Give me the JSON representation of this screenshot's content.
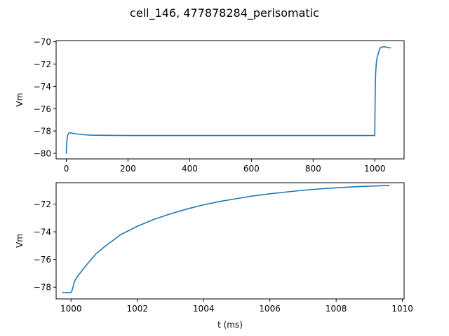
{
  "figure": {
    "suptitle": "cell_146, 477878284_perisomatic"
  },
  "chart_data": [
    {
      "type": "line",
      "title": "",
      "xlabel": "",
      "ylabel": "Vm",
      "xlim": [
        -33,
        1095
      ],
      "ylim": [
        -80.5,
        -69.9
      ],
      "xticks": [
        0,
        200,
        400,
        600,
        800,
        1000
      ],
      "yticks": [
        -80,
        -78,
        -76,
        -74,
        -72,
        -70
      ],
      "xtick_labels": [
        "0",
        "200",
        "400",
        "600",
        "800",
        "1000"
      ],
      "ytick_labels": [
        "−80",
        "−78",
        "−76",
        "−74",
        "−72",
        "−70"
      ],
      "grid": false,
      "color": "#1f77b4",
      "series": [
        {
          "x": [
            0,
            1,
            3,
            5,
            8,
            12,
            20,
            30,
            50,
            80,
            120,
            200,
            300,
            400,
            500,
            600,
            700,
            800,
            900,
            999.5,
            1000,
            1000.2,
            1000.5,
            1001,
            1002,
            1003,
            1005,
            1008,
            1010,
            1015,
            1020,
            1030,
            1040,
            1050
          ],
          "y": [
            -80.0,
            -79.2,
            -78.6,
            -78.35,
            -78.2,
            -78.15,
            -78.2,
            -78.25,
            -78.32,
            -78.37,
            -78.39,
            -78.4,
            -78.4,
            -78.4,
            -78.4,
            -78.4,
            -78.4,
            -78.4,
            -78.4,
            -78.4,
            -78.4,
            -77.6,
            -76.6,
            -75.3,
            -73.6,
            -72.7,
            -71.9,
            -71.35,
            -71.2,
            -70.7,
            -70.5,
            -70.45,
            -70.5,
            -70.55
          ]
        }
      ]
    },
    {
      "type": "line",
      "title": "",
      "xlabel": "t (ms)",
      "ylabel": "Vm",
      "xlim": [
        999.55,
        1010.05
      ],
      "ylim": [
        -78.85,
        -70.45
      ],
      "xticks": [
        1000,
        1002,
        1004,
        1006,
        1008,
        1010
      ],
      "yticks": [
        -78,
        -76,
        -74,
        -72
      ],
      "xtick_labels": [
        "1000",
        "1002",
        "1004",
        "1006",
        "1008",
        "1010"
      ],
      "ytick_labels": [
        "−78",
        "−76",
        "−74",
        "−72"
      ],
      "grid": false,
      "color": "#1f77b4",
      "series": [
        {
          "x": [
            999.75,
            1000.0,
            1000.05,
            1000.1,
            1000.2,
            1000.3,
            1000.5,
            1000.75,
            1001.0,
            1001.5,
            1002.0,
            1002.5,
            1003.0,
            1003.5,
            1004.0,
            1004.5,
            1005.0,
            1005.5,
            1006.0,
            1006.5,
            1007.0,
            1007.5,
            1008.0,
            1008.5,
            1009.0,
            1009.6
          ],
          "y": [
            -78.4,
            -78.4,
            -78.1,
            -77.6,
            -77.2,
            -76.9,
            -76.3,
            -75.6,
            -75.1,
            -74.2,
            -73.6,
            -73.1,
            -72.7,
            -72.35,
            -72.05,
            -71.8,
            -71.6,
            -71.4,
            -71.25,
            -71.12,
            -71.0,
            -70.9,
            -70.82,
            -70.75,
            -70.7,
            -70.65
          ]
        }
      ]
    }
  ]
}
